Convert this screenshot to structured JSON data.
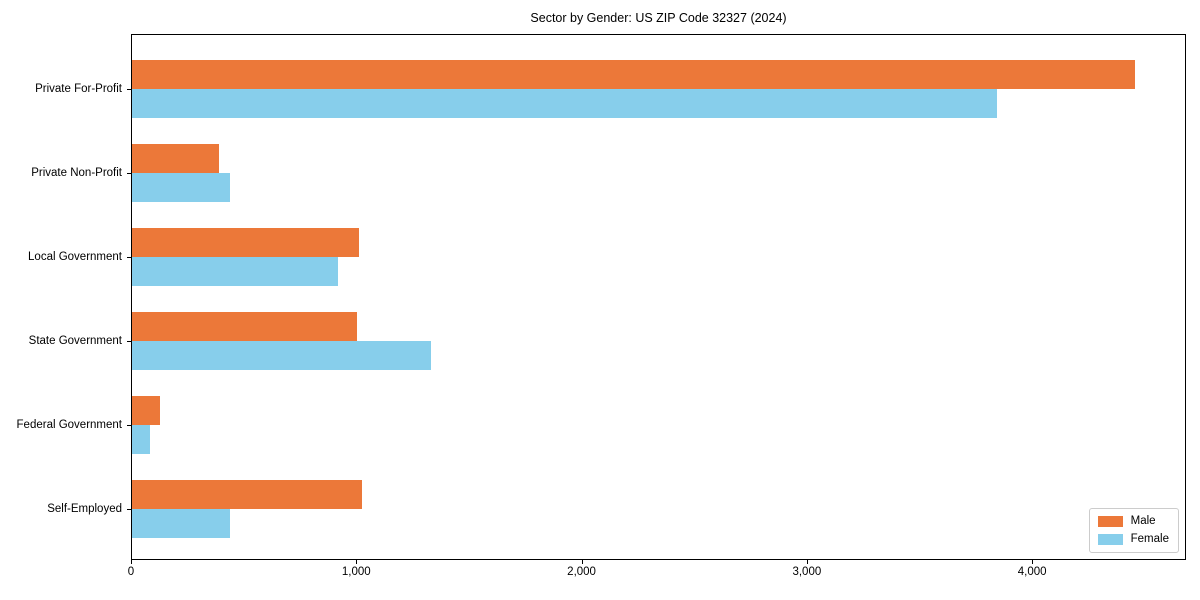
{
  "title": "Sector by Gender: US ZIP Code 32327 (2024)",
  "chart_data": {
    "type": "bar",
    "orientation": "horizontal",
    "title": "Sector by Gender: US ZIP Code 32327 (2024)",
    "categories": [
      "Private For-Profit",
      "Private Non-Profit",
      "Local Government",
      "State Government",
      "Federal Government",
      "Self-Employed"
    ],
    "series": [
      {
        "name": "Male",
        "color": "#ec7839",
        "values": [
          4460,
          385,
          1010,
          1000,
          125,
          1025
        ]
      },
      {
        "name": "Female",
        "color": "#87ceeb",
        "values": [
          3845,
          437,
          915,
          1330,
          78,
          435
        ]
      }
    ],
    "xlabel": "",
    "ylabel": "",
    "xlim": [
      0,
      4683
    ],
    "xticks": [
      {
        "value": 0,
        "label": "0"
      },
      {
        "value": 1000,
        "label": "1,000"
      },
      {
        "value": 2000,
        "label": "2,000"
      },
      {
        "value": 3000,
        "label": "3,000"
      },
      {
        "value": 4000,
        "label": "4,000"
      }
    ],
    "grid": false,
    "legend": {
      "position": "lower right"
    }
  }
}
